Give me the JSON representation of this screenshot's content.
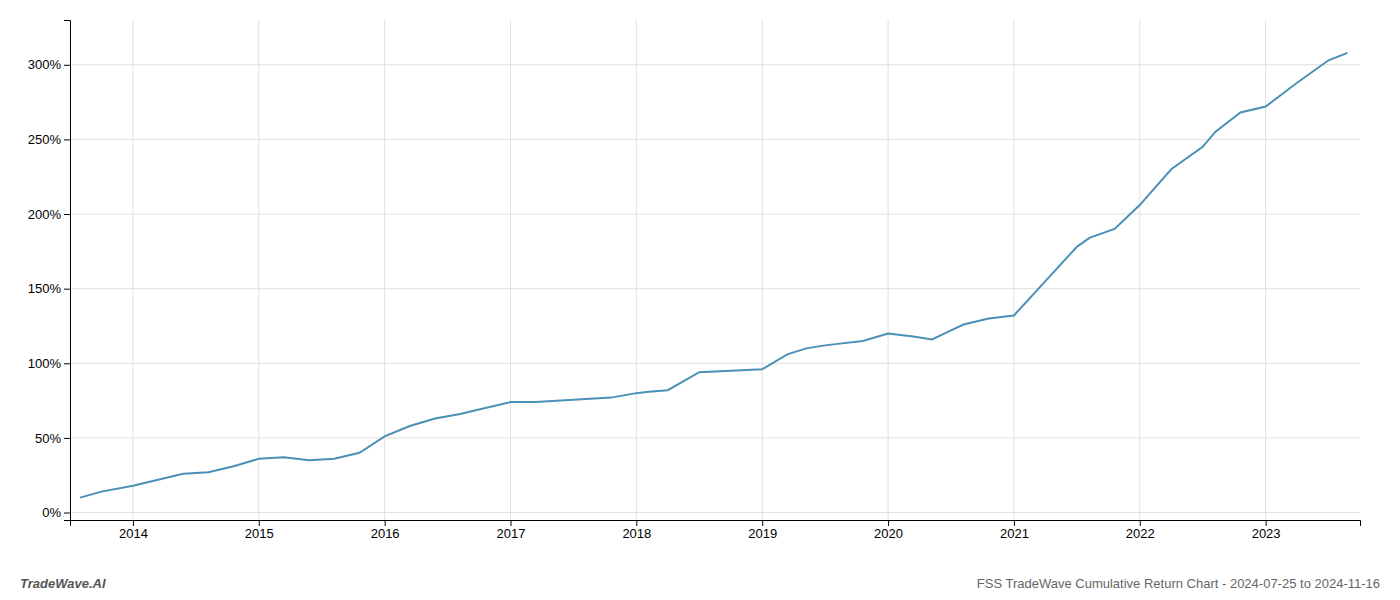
{
  "chart_data": {
    "type": "line",
    "title": "FSS TradeWave Cumulative Return Chart - 2024-07-25 to 2024-11-16",
    "annotations": [
      "TradeWave.AI"
    ],
    "x": [
      2013.58,
      2013.75,
      2014.0,
      2014.2,
      2014.4,
      2014.6,
      2014.8,
      2015.0,
      2015.2,
      2015.4,
      2015.6,
      2015.8,
      2016.0,
      2016.2,
      2016.4,
      2016.6,
      2016.8,
      2017.0,
      2017.2,
      2017.4,
      2017.6,
      2017.8,
      2018.0,
      2018.1,
      2018.25,
      2018.5,
      2018.75,
      2019.0,
      2019.2,
      2019.35,
      2019.5,
      2019.6,
      2019.8,
      2020.0,
      2020.2,
      2020.35,
      2020.5,
      2020.6,
      2020.8,
      2021.0,
      2021.25,
      2021.5,
      2021.6,
      2021.8,
      2022.0,
      2022.25,
      2022.5,
      2022.6,
      2022.8,
      2023.0,
      2023.25,
      2023.5,
      2023.65
    ],
    "values": [
      10,
      14,
      18,
      22,
      26,
      27,
      31,
      36,
      37,
      35,
      36,
      40,
      51,
      58,
      63,
      66,
      70,
      74,
      74,
      75,
      76,
      77,
      80,
      81,
      82,
      94,
      95,
      96,
      106,
      110,
      112,
      113,
      115,
      120,
      118,
      116,
      122,
      126,
      130,
      132,
      155,
      178,
      184,
      190,
      206,
      230,
      245,
      255,
      268,
      272,
      288,
      303,
      308
    ],
    "color": "#4a90b8",
    "xlim": [
      2013.5,
      2023.75
    ],
    "ylim": [
      -5,
      330
    ],
    "xticks": [
      2014,
      2015,
      2016,
      2017,
      2018,
      2019,
      2020,
      2021,
      2022,
      2023
    ],
    "yticks": [
      {
        "value": 0,
        "label": "0%"
      },
      {
        "value": 50,
        "label": "50%"
      },
      {
        "value": 100,
        "label": "100%"
      },
      {
        "value": 150,
        "label": "150%"
      },
      {
        "value": 200,
        "label": "200%"
      },
      {
        "value": 250,
        "label": "250%"
      },
      {
        "value": 300,
        "label": "300%"
      }
    ],
    "grid": true
  }
}
